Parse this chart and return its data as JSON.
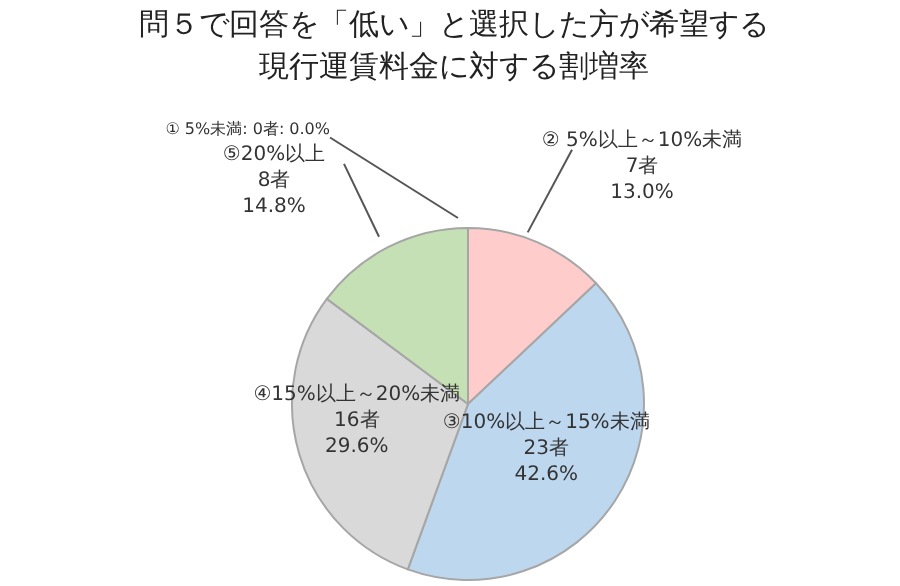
{
  "chart_data": {
    "type": "pie",
    "title": "問５で回答を「低い」と選択した方が希望する現行運賃料金に対する割増率",
    "categories": [
      "① 5%未満",
      "② 5%以上～10%未満",
      "③10%以上～15%未満",
      "④15%以上～20%未満",
      "⑤20%以上"
    ],
    "values": [
      0,
      7,
      23,
      16,
      8
    ],
    "value_labels": [
      ": 0者: 0.0%",
      "7者\n13.0%",
      "23者\n42.6%",
      "16者\n29.6%",
      "8者\n14.8%"
    ],
    "colors": [
      "#9dc3e6",
      "#ffcccc",
      "#bdd7ee",
      "#d9d9d9",
      "#c5e0b4"
    ],
    "legend": false
  }
}
